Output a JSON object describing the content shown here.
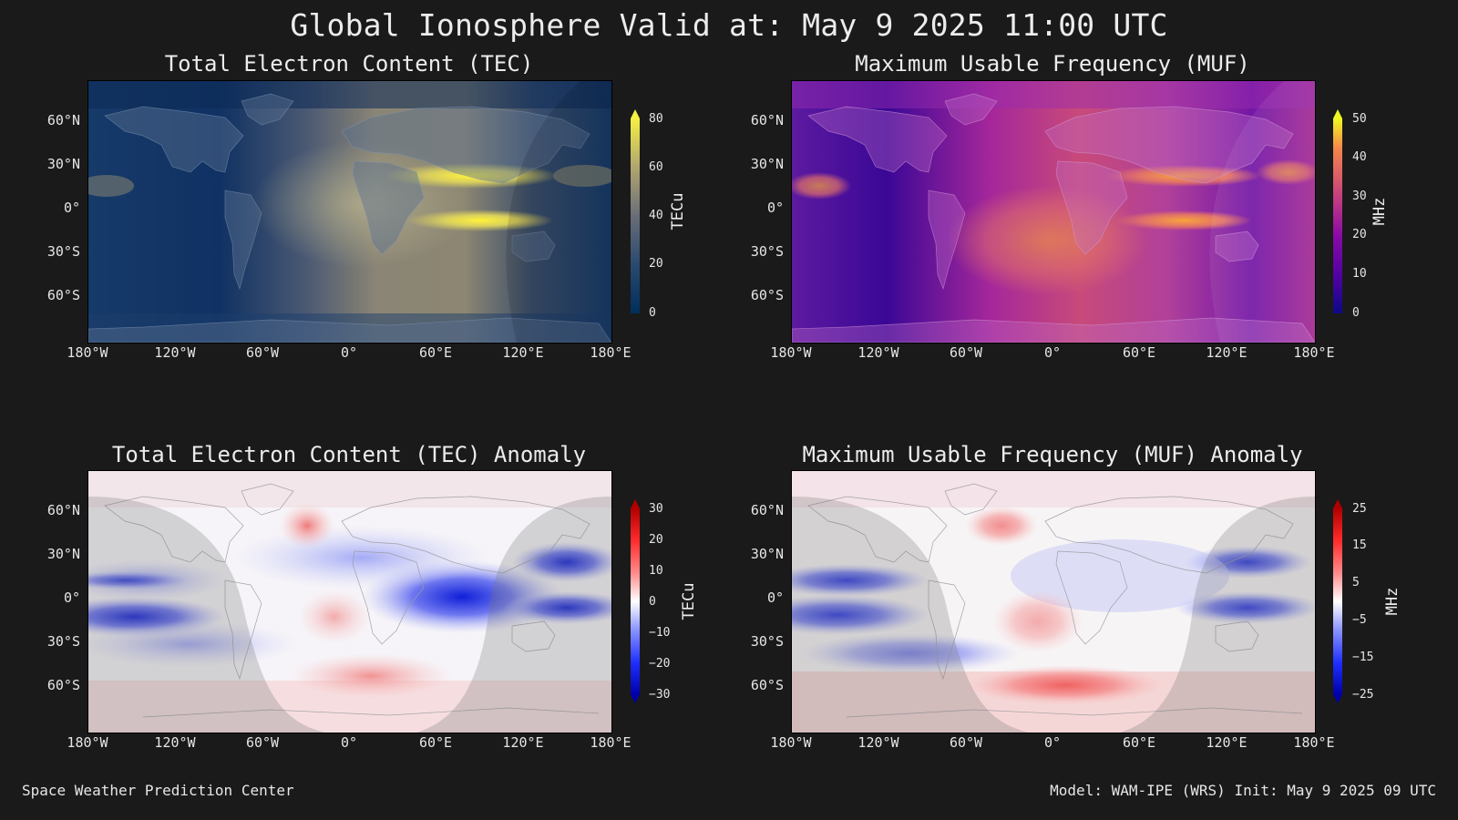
{
  "main_title": "Global Ionosphere Valid at: May 9 2025 11:00 UTC",
  "footer": {
    "left": "Space Weather Prediction Center",
    "right": "Model: WAM-IPE (WRS) Init: May 9 2025 09 UTC"
  },
  "lat_labels": [
    "60°N",
    "30°N",
    "0°",
    "30°S",
    "60°S"
  ],
  "lon_labels": [
    "180°W",
    "120°W",
    "60°W",
    "0°",
    "60°E",
    "120°E",
    "180°E"
  ],
  "panels": {
    "tec": {
      "title": "Total Electron Content (TEC)",
      "unit": "TECu",
      "ticks": [
        "80",
        "60",
        "40",
        "20",
        "0"
      ],
      "tick_values": [
        80,
        60,
        40,
        20,
        0
      ],
      "range": [
        0,
        80
      ],
      "colormap": [
        "#002e5c",
        "#1c3f6a",
        "#3d5373",
        "#6a6d78",
        "#9a9379",
        "#c9bb6c",
        "#f5f043"
      ]
    },
    "muf": {
      "title": "Maximum Usable Frequency (MUF)",
      "unit": "MHz",
      "ticks": [
        "50",
        "40",
        "30",
        "20",
        "10",
        "0"
      ],
      "tick_values": [
        50,
        40,
        30,
        20,
        10,
        0
      ],
      "range": [
        0,
        50
      ],
      "colormap": [
        "#0d0887",
        "#5302a3",
        "#8b0aa5",
        "#b83289",
        "#db5c68",
        "#f48849",
        "#febd2a",
        "#f0f921"
      ]
    },
    "tec_anomaly": {
      "title": "Total Electron Content (TEC) Anomaly",
      "unit": "TECu",
      "ticks": [
        "30",
        "20",
        "10",
        "0",
        "−10",
        "−20",
        "−30"
      ],
      "tick_values": [
        30,
        20,
        10,
        0,
        -10,
        -20,
        -30
      ],
      "range": [
        -30,
        30
      ],
      "colormap": [
        "#0000a8",
        "#1f2fff",
        "#8c96ff",
        "#ffffff",
        "#ff8c8c",
        "#ff2a2a",
        "#b00000"
      ]
    },
    "muf_anomaly": {
      "title": "Maximum Usable Frequency (MUF) Anomaly",
      "unit": "MHz",
      "ticks": [
        "25",
        "15",
        "5",
        "−5",
        "−15",
        "−25"
      ],
      "tick_values": [
        25,
        15,
        5,
        -5,
        -15,
        -25
      ],
      "range": [
        -25,
        25
      ],
      "colormap": [
        "#0000a8",
        "#1f2fff",
        "#8c96ff",
        "#ffffff",
        "#ff8c8c",
        "#ff2a2a",
        "#b00000"
      ]
    }
  }
}
